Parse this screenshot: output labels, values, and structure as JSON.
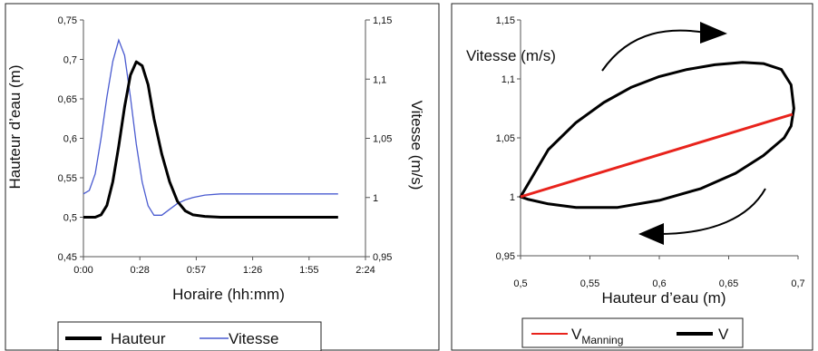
{
  "chart_data": [
    {
      "type": "line",
      "xlabel": "Horaire (hh:mm)",
      "ylabel": "Hauteur d’eau (m)",
      "y2label": "Vitesse (m/s)",
      "x_ticks": [
        "0:00",
        "0:28",
        "0:57",
        "1:26",
        "1:55",
        "2:24"
      ],
      "x_tick_minutes": [
        0,
        28.8,
        57.6,
        86.4,
        115.2,
        144
      ],
      "xlim_minutes": [
        0,
        144
      ],
      "ylim": [
        0.45,
        0.75
      ],
      "y_ticks": [
        "0,45",
        "0,5",
        "0,55",
        "0,6",
        "0,65",
        "0,7",
        "0,75"
      ],
      "y2lim": [
        0.95,
        1.15
      ],
      "y2_ticks": [
        "0,95",
        "1",
        "1,05",
        "1,1",
        "1,15"
      ],
      "grid": false,
      "legend_position": "bottom",
      "series": [
        {
          "name": "Hauteur",
          "axis": "left",
          "color": "#000000",
          "x_minutes": [
            0,
            6,
            9,
            12,
            15,
            18,
            21,
            24,
            27,
            30,
            33,
            36,
            40,
            44,
            48,
            52,
            56,
            62,
            70,
            90,
            110,
            130
          ],
          "y": [
            0.5,
            0.5,
            0.503,
            0.515,
            0.545,
            0.59,
            0.64,
            0.68,
            0.697,
            0.692,
            0.668,
            0.625,
            0.58,
            0.545,
            0.52,
            0.508,
            0.503,
            0.501,
            0.5,
            0.5,
            0.5,
            0.5
          ]
        },
        {
          "name": "Vitesse",
          "axis": "right",
          "color": "#4a5bd0",
          "x_minutes": [
            0,
            3,
            6,
            9,
            12,
            15,
            18,
            21,
            24,
            27,
            30,
            33,
            36,
            40,
            44,
            48,
            52,
            56,
            62,
            70,
            90,
            110,
            130
          ],
          "y2": [
            1.003,
            1.006,
            1.02,
            1.05,
            1.085,
            1.115,
            1.133,
            1.12,
            1.085,
            1.045,
            1.013,
            0.993,
            0.985,
            0.985,
            0.99,
            0.995,
            0.998,
            1.0,
            1.002,
            1.003,
            1.003,
            1.003,
            1.003
          ]
        }
      ]
    },
    {
      "type": "scatter",
      "xlabel": "Hauteur d’eau (m)",
      "ylabel": "Vitesse (m/s)",
      "xlim": [
        0.5,
        0.7
      ],
      "x_ticks": [
        "0,5",
        "0,55",
        "0,6",
        "0,65",
        "0,7"
      ],
      "ylim": [
        0.95,
        1.15
      ],
      "y_ticks": [
        "0,95",
        "1",
        "1,05",
        "1,1",
        "1,15"
      ],
      "grid": false,
      "legend_position": "bottom",
      "series": [
        {
          "name_main": "V",
          "name_sub": "Manning",
          "color": "#e8231c",
          "x": [
            0.5,
            0.696
          ],
          "y": [
            1.0,
            1.07
          ]
        },
        {
          "name_main": "V",
          "name_sub": "",
          "color": "#000000",
          "x": [
            0.5,
            0.52,
            0.54,
            0.56,
            0.58,
            0.6,
            0.62,
            0.64,
            0.66,
            0.675,
            0.688,
            0.695,
            0.697,
            0.695,
            0.69,
            0.675,
            0.655,
            0.63,
            0.6,
            0.57,
            0.54,
            0.52,
            0.505,
            0.5
          ],
          "y": [
            1.0,
            1.04,
            1.063,
            1.08,
            1.093,
            1.102,
            1.108,
            1.112,
            1.114,
            1.113,
            1.108,
            1.095,
            1.075,
            1.06,
            1.05,
            1.035,
            1.02,
            1.007,
            0.997,
            0.991,
            0.991,
            0.994,
            0.998,
            1.0
          ]
        }
      ],
      "arrow_annotations": 2
    }
  ]
}
